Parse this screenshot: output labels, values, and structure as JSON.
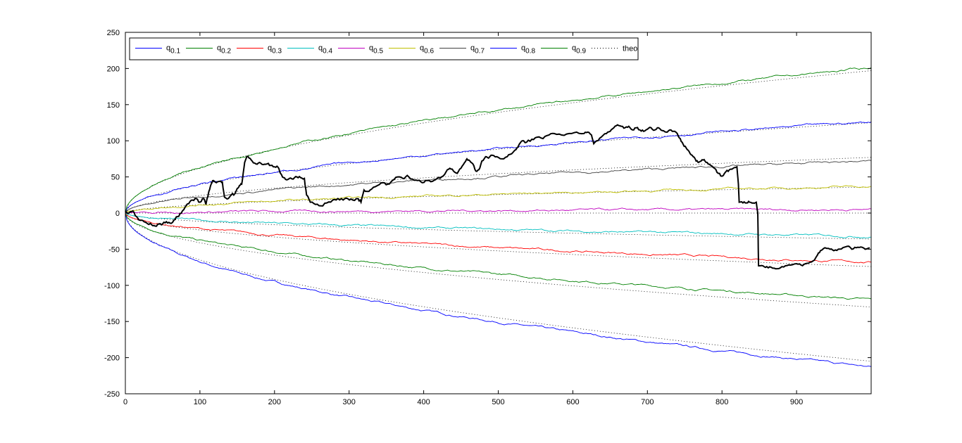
{
  "chart_data": {
    "type": "line",
    "title": "",
    "xlabel": "",
    "ylabel": "",
    "xlim": [
      0,
      1000
    ],
    "ylim": [
      -250,
      250
    ],
    "xticks": [
      0,
      100,
      200,
      300,
      400,
      500,
      600,
      700,
      800,
      900
    ],
    "yticks": [
      -250,
      -200,
      -150,
      -100,
      -50,
      0,
      50,
      100,
      150,
      200,
      250
    ],
    "xtick_labels": [
      "0",
      "100",
      "200",
      "300",
      "400",
      "500",
      "600",
      "700",
      "800",
      "900"
    ],
    "ytick_labels": [
      "-250",
      "-200",
      "-150",
      "-100",
      "-50",
      "0",
      "50",
      "100",
      "150",
      "200",
      "250"
    ],
    "grid": false,
    "legend_position": "top-left",
    "legend_orientation": "horizontal",
    "quantile_series": [
      {
        "id": "q1",
        "label_base": "q",
        "label_sub": "0.1",
        "color": "#0000ff",
        "end_value": -213,
        "theo_end": -205
      },
      {
        "id": "q2",
        "label_base": "q",
        "label_sub": "0.2",
        "color": "#008000",
        "end_value": -120,
        "theo_end": -130
      },
      {
        "id": "q3",
        "label_base": "q",
        "label_sub": "0.3",
        "color": "#ff0000",
        "end_value": -68,
        "theo_end": -74
      },
      {
        "id": "q4",
        "label_base": "q",
        "label_sub": "0.4",
        "color": "#00bfbf",
        "end_value": -32,
        "theo_end": -36
      },
      {
        "id": "q5",
        "label_base": "q",
        "label_sub": "0.5",
        "color": "#bf00bf",
        "end_value": 5,
        "theo_end": 0
      },
      {
        "id": "q6",
        "label_base": "q",
        "label_sub": "0.6",
        "color": "#bfbf00",
        "end_value": 37,
        "theo_end": 36
      },
      {
        "id": "q7",
        "label_base": "q",
        "label_sub": "0.7",
        "color": "#404040",
        "end_value": 72,
        "theo_end": 77
      },
      {
        "id": "q8",
        "label_base": "q",
        "label_sub": "0.8",
        "color": "#0000ff",
        "end_value": 126,
        "theo_end": 125
      },
      {
        "id": "q9",
        "label_base": "q",
        "label_sub": "0.9",
        "color": "#008000",
        "end_value": 201,
        "theo_end": 197
      }
    ],
    "theo": {
      "label": "theo",
      "color": "#000000",
      "style": "dotted"
    },
    "path": {
      "color": "#000000",
      "points": [
        [
          0,
          3
        ],
        [
          5,
          0
        ],
        [
          10,
          3
        ],
        [
          15,
          -5
        ],
        [
          20,
          -10
        ],
        [
          25,
          -12
        ],
        [
          30,
          -15
        ],
        [
          35,
          -16
        ],
        [
          40,
          -18
        ],
        [
          45,
          -15
        ],
        [
          50,
          -15
        ],
        [
          55,
          -12
        ],
        [
          60,
          -14
        ],
        [
          65,
          -10
        ],
        [
          70,
          -5
        ],
        [
          75,
          0
        ],
        [
          80,
          8
        ],
        [
          85,
          13
        ],
        [
          90,
          18
        ],
        [
          95,
          20
        ],
        [
          100,
          15
        ],
        [
          105,
          20
        ],
        [
          108,
          12
        ],
        [
          112,
          30
        ],
        [
          115,
          40
        ],
        [
          118,
          45
        ],
        [
          122,
          42
        ],
        [
          127,
          44
        ],
        [
          130,
          43
        ],
        [
          133,
          22
        ],
        [
          138,
          20
        ],
        [
          142,
          25
        ],
        [
          147,
          27
        ],
        [
          150,
          34
        ],
        [
          153,
          38
        ],
        [
          156,
          40
        ],
        [
          158,
          55
        ],
        [
          160,
          70
        ],
        [
          163,
          78
        ],
        [
          166,
          76
        ],
        [
          170,
          72
        ],
        [
          175,
          68
        ],
        [
          180,
          70
        ],
        [
          185,
          67
        ],
        [
          190,
          68
        ],
        [
          195,
          66
        ],
        [
          200,
          64
        ],
        [
          205,
          63
        ],
        [
          208,
          55
        ],
        [
          212,
          49
        ],
        [
          216,
          46
        ],
        [
          220,
          48
        ],
        [
          225,
          47
        ],
        [
          230,
          50
        ],
        [
          235,
          49
        ],
        [
          240,
          48
        ],
        [
          243,
          25
        ],
        [
          248,
          15
        ],
        [
          255,
          12
        ],
        [
          262,
          10
        ],
        [
          270,
          14
        ],
        [
          278,
          18
        ],
        [
          285,
          20
        ],
        [
          292,
          18
        ],
        [
          298,
          20
        ],
        [
          305,
          18
        ],
        [
          312,
          20
        ],
        [
          316,
          15
        ],
        [
          320,
          32
        ],
        [
          325,
          30
        ],
        [
          330,
          33
        ],
        [
          338,
          38
        ],
        [
          345,
          42
        ],
        [
          352,
          40
        ],
        [
          358,
          45
        ],
        [
          365,
          50
        ],
        [
          372,
          48
        ],
        [
          378,
          52
        ],
        [
          385,
          47
        ],
        [
          392,
          45
        ],
        [
          398,
          42
        ],
        [
          405,
          45
        ],
        [
          412,
          44
        ],
        [
          418,
          48
        ],
        [
          424,
          50
        ],
        [
          430,
          57
        ],
        [
          435,
          62
        ],
        [
          440,
          58
        ],
        [
          445,
          55
        ],
        [
          450,
          62
        ],
        [
          455,
          70
        ],
        [
          458,
          75
        ],
        [
          462,
          72
        ],
        [
          466,
          68
        ],
        [
          470,
          58
        ],
        [
          474,
          60
        ],
        [
          478,
          72
        ],
        [
          483,
          78
        ],
        [
          487,
          76
        ],
        [
          492,
          80
        ],
        [
          498,
          78
        ],
        [
          505,
          75
        ],
        [
          512,
          78
        ],
        [
          518,
          82
        ],
        [
          524,
          88
        ],
        [
          528,
          95
        ],
        [
          532,
          100
        ],
        [
          538,
          98
        ],
        [
          545,
          102
        ],
        [
          552,
          105
        ],
        [
          560,
          103
        ],
        [
          568,
          108
        ],
        [
          575,
          110
        ],
        [
          585,
          108
        ],
        [
          595,
          110
        ],
        [
          605,
          112
        ],
        [
          615,
          110
        ],
        [
          620,
          112
        ],
        [
          625,
          108
        ],
        [
          628,
          96
        ],
        [
          632,
          100
        ],
        [
          638,
          105
        ],
        [
          645,
          110
        ],
        [
          650,
          113
        ],
        [
          655,
          118
        ],
        [
          660,
          122
        ],
        [
          665,
          120
        ],
        [
          670,
          118
        ],
        [
          675,
          120
        ],
        [
          680,
          115
        ],
        [
          685,
          118
        ],
        [
          690,
          115
        ],
        [
          695,
          113
        ],
        [
          700,
          116
        ],
        [
          705,
          118
        ],
        [
          710,
          115
        ],
        [
          715,
          118
        ],
        [
          720,
          114
        ],
        [
          725,
          112
        ],
        [
          730,
          115
        ],
        [
          735,
          113
        ],
        [
          740,
          110
        ],
        [
          744,
          103
        ],
        [
          748,
          95
        ],
        [
          752,
          90
        ],
        [
          756,
          85
        ],
        [
          760,
          80
        ],
        [
          764,
          75
        ],
        [
          768,
          70
        ],
        [
          772,
          72
        ],
        [
          776,
          74
        ],
        [
          780,
          70
        ],
        [
          785,
          66
        ],
        [
          790,
          62
        ],
        [
          795,
          55
        ],
        [
          800,
          51
        ],
        [
          805,
          57
        ],
        [
          810,
          60
        ],
        [
          815,
          62
        ],
        [
          820,
          64
        ],
        [
          822,
          40
        ],
        [
          823,
          15
        ],
        [
          828,
          14
        ],
        [
          833,
          14
        ],
        [
          837,
          15
        ],
        [
          842,
          14
        ],
        [
          846,
          15
        ],
        [
          848,
          0
        ],
        [
          849,
          -73
        ],
        [
          855,
          -73
        ],
        [
          860,
          -74
        ],
        [
          866,
          -75
        ],
        [
          872,
          -77
        ],
        [
          878,
          -76
        ],
        [
          885,
          -73
        ],
        [
          892,
          -72
        ],
        [
          900,
          -70
        ],
        [
          906,
          -72
        ],
        [
          912,
          -70
        ],
        [
          918,
          -68
        ],
        [
          924,
          -65
        ],
        [
          928,
          -58
        ],
        [
          932,
          -52
        ],
        [
          938,
          -48
        ],
        [
          945,
          -50
        ],
        [
          950,
          -52
        ],
        [
          956,
          -50
        ],
        [
          962,
          -48
        ],
        [
          968,
          -46
        ],
        [
          974,
          -50
        ],
        [
          980,
          -48
        ],
        [
          986,
          -47
        ],
        [
          992,
          -50
        ],
        [
          998,
          -48
        ]
      ]
    }
  }
}
